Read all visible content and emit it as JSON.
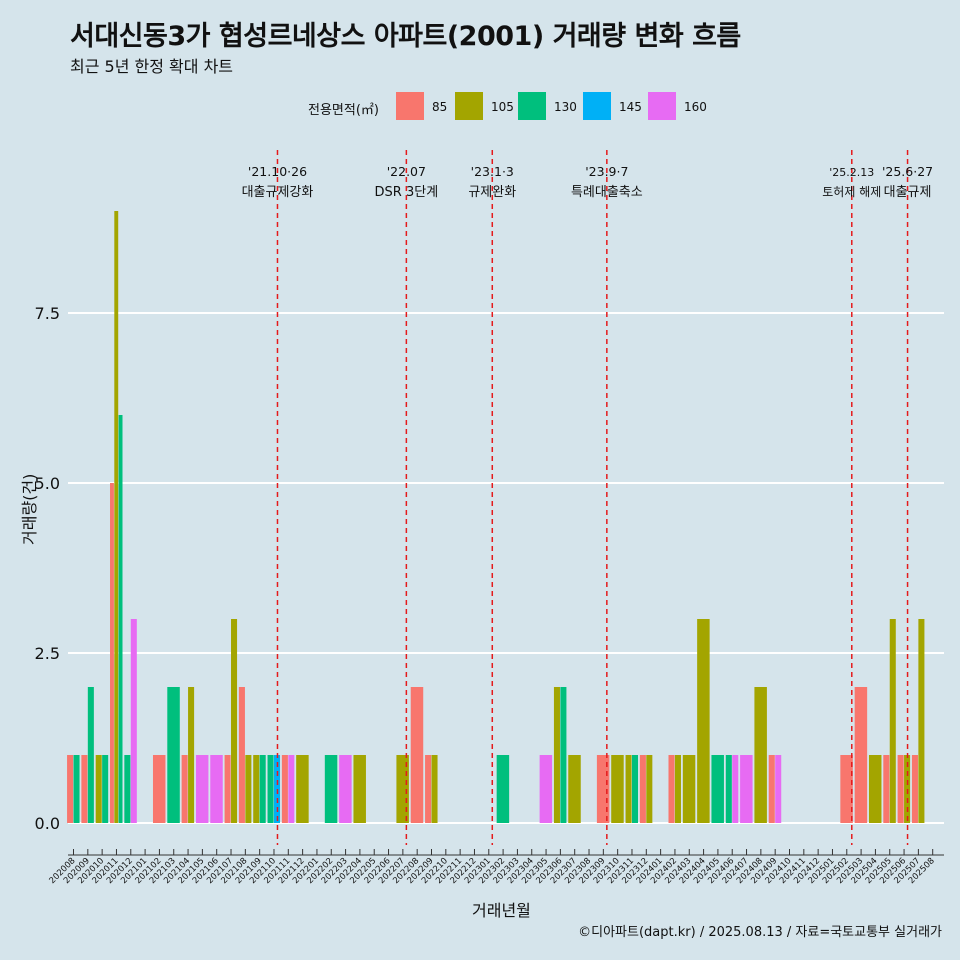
{
  "chart_data": {
    "type": "bar",
    "title": "서대신동3가 협성르네상스 아파트(2001) 거래량 변화 흐름",
    "subtitle": "최근 5년 한정 확대 차트",
    "xlabel": "거래년월",
    "ylabel": "거래량(건)",
    "caption": "©디아파트(dapt.kr) / 2025.08.13 / 자료=국토교통부 실거래가",
    "legend_title": "전용면적(㎡)",
    "legend_position": "top",
    "ylim": [
      -0.4,
      9.6
    ],
    "yticks": [
      0.0,
      2.5,
      5.0,
      7.5
    ],
    "ytick_labels": [
      "0.0",
      "2.5",
      "5.0",
      "7.5"
    ],
    "grid": true,
    "categories": [
      "202008",
      "202009",
      "202010",
      "202011",
      "202012",
      "202101",
      "202102",
      "202103",
      "202104",
      "202105",
      "202106",
      "202107",
      "202108",
      "202109",
      "202110",
      "202111",
      "202112",
      "202201",
      "202202",
      "202203",
      "202204",
      "202205",
      "202206",
      "202207",
      "202208",
      "202209",
      "202210",
      "202211",
      "202212",
      "202301",
      "202302",
      "202303",
      "202304",
      "202305",
      "202306",
      "202307",
      "202308",
      "202309",
      "202310",
      "202311",
      "202312",
      "202401",
      "202402",
      "202403",
      "202404",
      "202405",
      "202406",
      "202407",
      "202408",
      "202409",
      "202410",
      "202411",
      "202412",
      "202501",
      "202502",
      "202503",
      "202504",
      "202505",
      "202506",
      "202507",
      "202508"
    ],
    "series": [
      {
        "name": "85",
        "color": "#F8766D",
        "values": [
          1,
          1,
          0,
          5,
          0,
          0,
          1,
          0,
          1,
          0,
          0,
          1,
          2,
          0,
          0,
          1,
          0,
          0,
          0,
          0,
          0,
          0,
          0,
          0,
          2,
          1,
          0,
          0,
          0,
          0,
          0,
          0,
          0,
          0,
          0,
          0,
          0,
          1,
          0,
          0,
          1,
          0,
          1,
          0,
          0,
          0,
          0,
          0,
          0,
          1,
          0,
          0,
          0,
          0,
          1,
          2,
          0,
          1,
          1,
          1,
          0
        ]
      },
      {
        "name": "105",
        "color": "#A3A500",
        "values": [
          0,
          0,
          1,
          9,
          0,
          0,
          0,
          0,
          2,
          0,
          0,
          3,
          1,
          1,
          0,
          0,
          1,
          0,
          0,
          0,
          1,
          0,
          0,
          1,
          0,
          1,
          0,
          0,
          0,
          0,
          0,
          0,
          0,
          0,
          2,
          1,
          0,
          0,
          1,
          1,
          1,
          0,
          1,
          1,
          3,
          0,
          0,
          0,
          2,
          0,
          0,
          0,
          0,
          0,
          0,
          0,
          1,
          3,
          1,
          3,
          0
        ]
      },
      {
        "name": "130",
        "color": "#00BF7D",
        "values": [
          1,
          2,
          1,
          6,
          1,
          0,
          0,
          2,
          0,
          0,
          0,
          0,
          0,
          1,
          1,
          0,
          0,
          0,
          1,
          0,
          0,
          0,
          0,
          0,
          0,
          0,
          0,
          0,
          0,
          0,
          1,
          0,
          0,
          0,
          2,
          0,
          0,
          0,
          0,
          1,
          0,
          0,
          0,
          0,
          0,
          1,
          1,
          0,
          0,
          0,
          0,
          0,
          0,
          0,
          0,
          0,
          0,
          0,
          0,
          0,
          0
        ]
      },
      {
        "name": "145",
        "color": "#00B0F6",
        "values": [
          0,
          0,
          0,
          0,
          0,
          0,
          0,
          0,
          0,
          0,
          0,
          0,
          0,
          0,
          1,
          0,
          0,
          0,
          0,
          0,
          0,
          0,
          0,
          0,
          0,
          0,
          0,
          0,
          0,
          0,
          0,
          0,
          0,
          0,
          0,
          0,
          0,
          0,
          0,
          0,
          0,
          0,
          0,
          0,
          0,
          0,
          0,
          0,
          0,
          0,
          0,
          0,
          0,
          0,
          0,
          0,
          0,
          0,
          0,
          0,
          0
        ]
      },
      {
        "name": "160",
        "color": "#E76BF3",
        "values": [
          0,
          0,
          0,
          0,
          3,
          0,
          0,
          0,
          0,
          1,
          1,
          0,
          0,
          0,
          0,
          1,
          0,
          0,
          0,
          1,
          0,
          0,
          0,
          0,
          0,
          0,
          0,
          0,
          0,
          0,
          0,
          0,
          0,
          1,
          0,
          0,
          0,
          0,
          0,
          0,
          0,
          0,
          0,
          0,
          0,
          0,
          1,
          1,
          0,
          1,
          0,
          0,
          0,
          0,
          0,
          0,
          0,
          0,
          0,
          0,
          0
        ]
      }
    ],
    "annotations": [
      {
        "month": "202110",
        "date": "'21.10·26",
        "label": "대출규제강화"
      },
      {
        "month": "202207",
        "date": "'22.07",
        "label": "DSR 3단계"
      },
      {
        "month": "202301",
        "date": "'23.1·3",
        "label": "규제완화"
      },
      {
        "month": "202309",
        "date": "'23.9·7",
        "label": "특례대출축소"
      },
      {
        "month": "202502",
        "date": "'25.2.13",
        "label": "토허제 해제"
      },
      {
        "month": "202506",
        "date": "'25.6·27",
        "label": "대출규제"
      }
    ],
    "annotation_line_color": "#e41a1c"
  }
}
